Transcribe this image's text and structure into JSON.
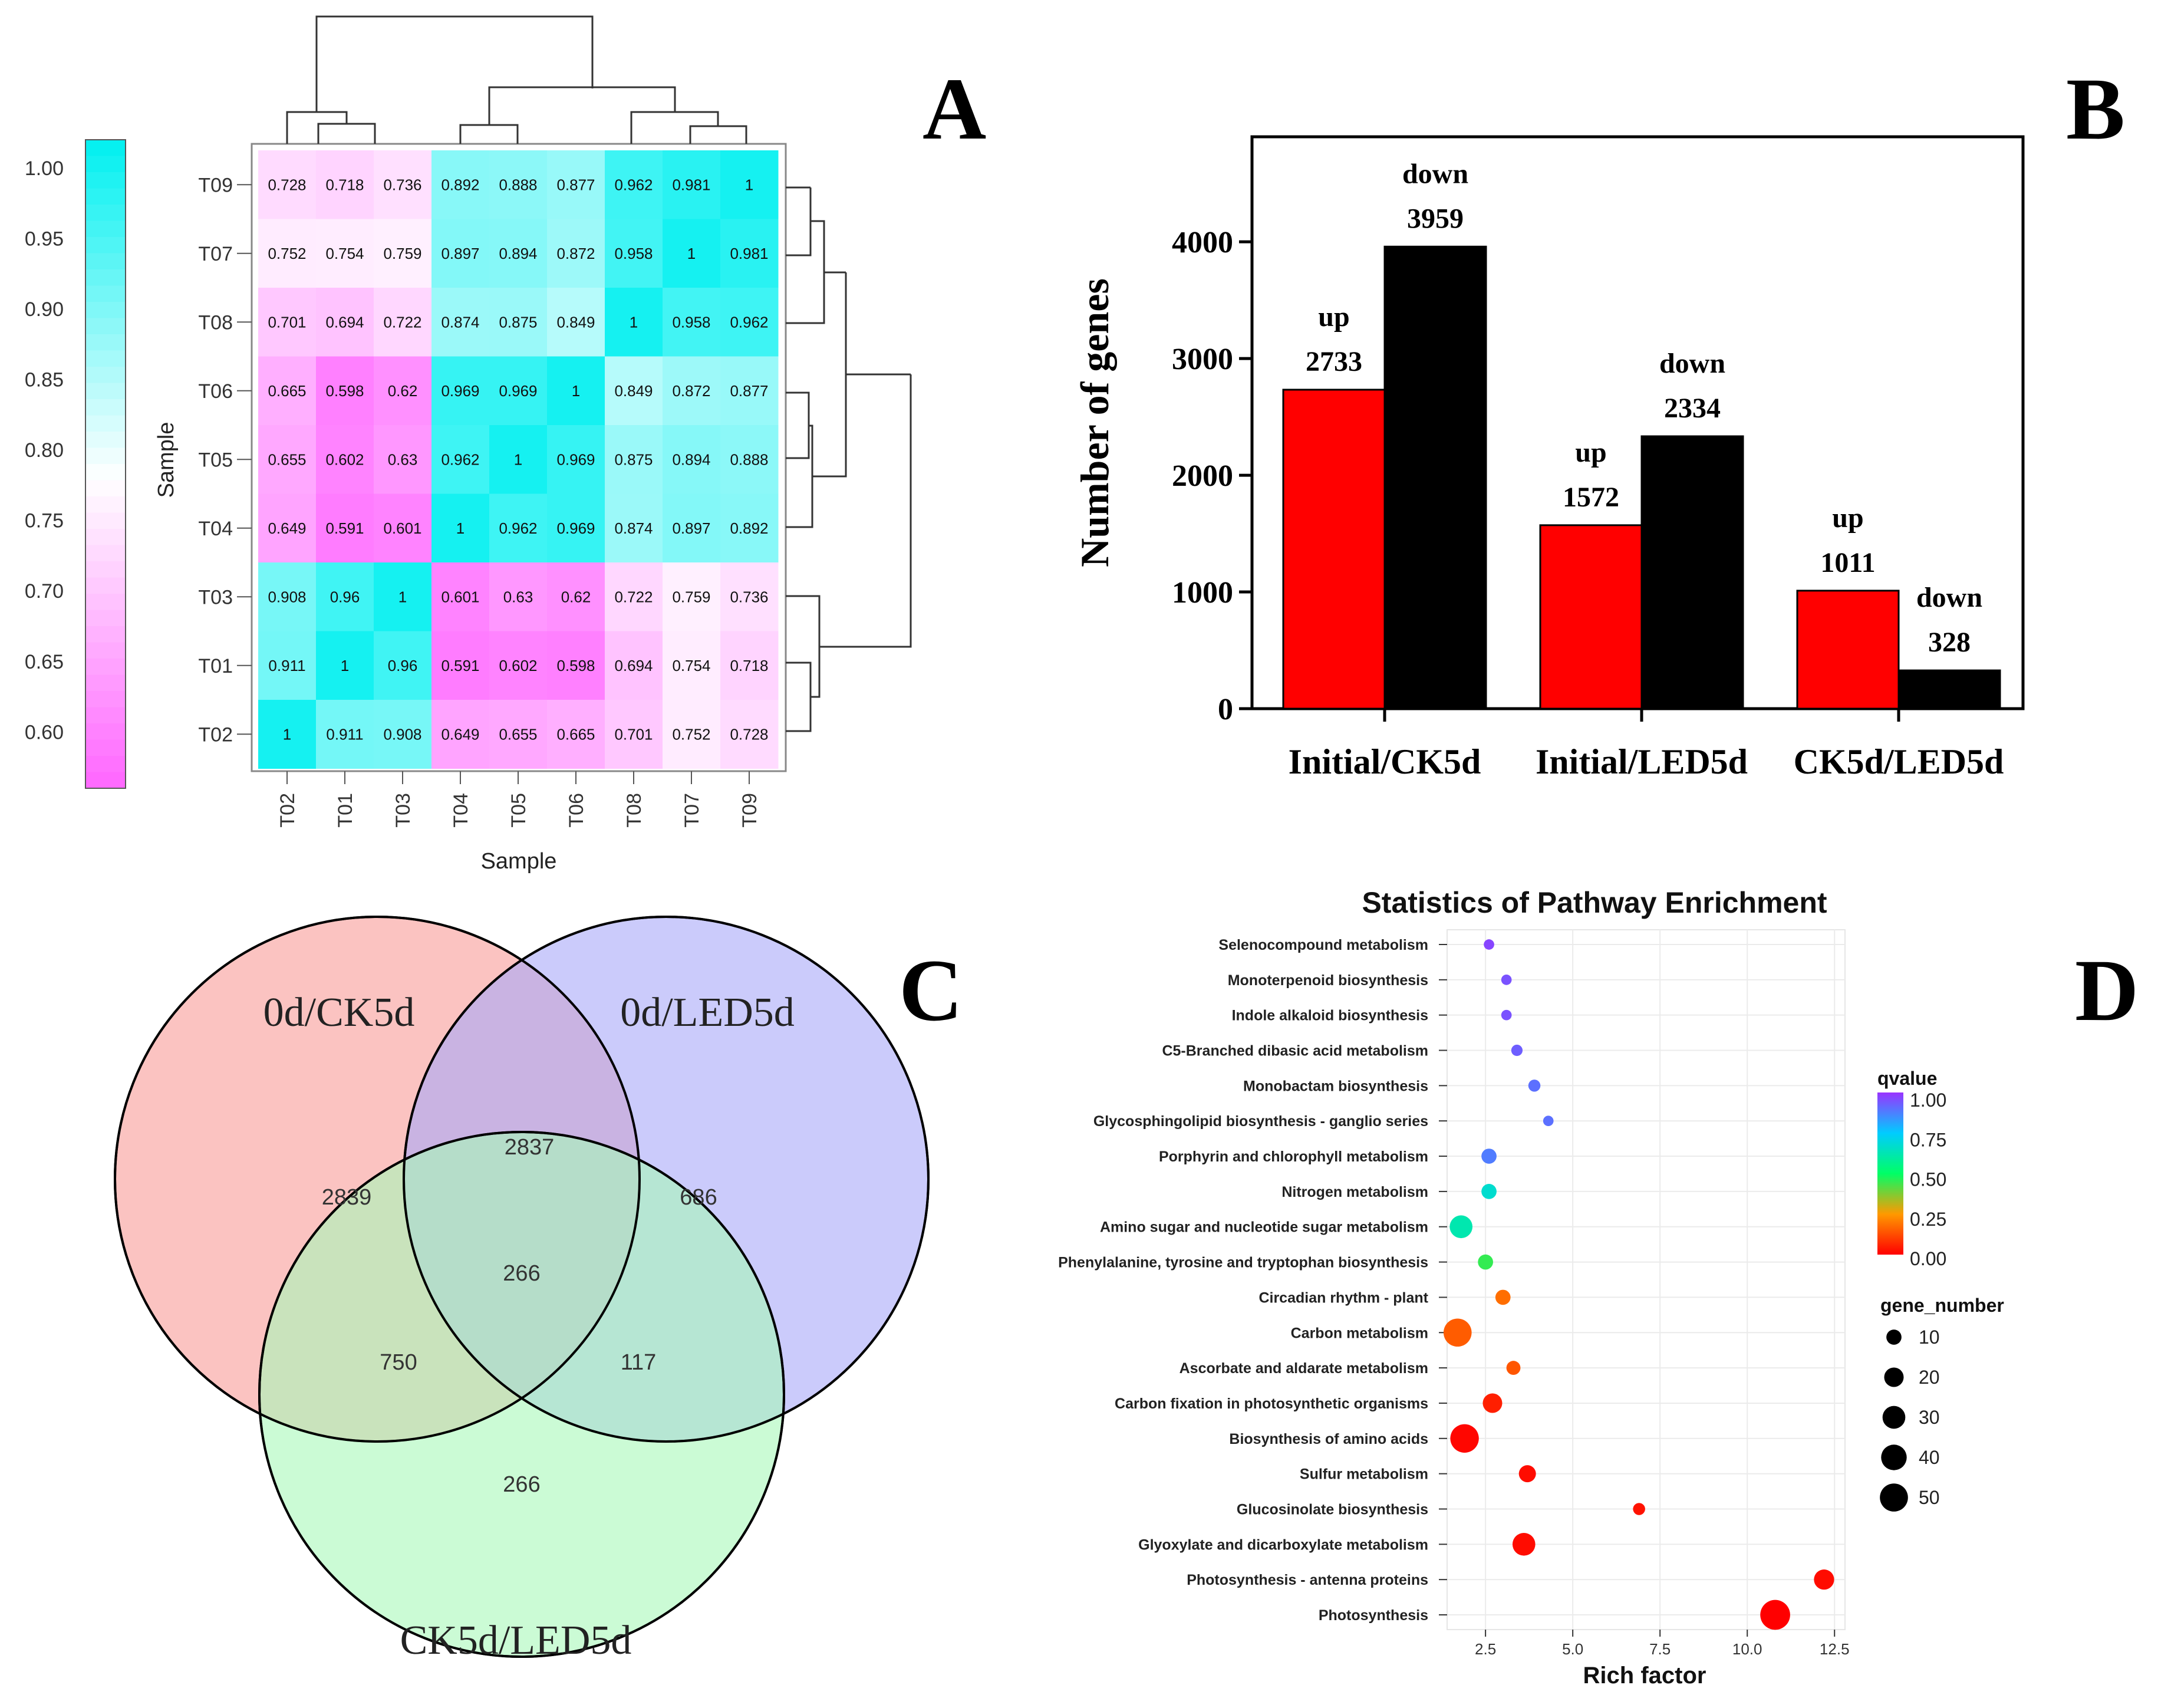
{
  "panels": {
    "a": "A",
    "b": "B",
    "c": "C",
    "d": "D"
  },
  "chart_data": [
    {
      "type": "heatmap",
      "panel": "A",
      "xlabel": "Sample",
      "ylabel": "Sample",
      "col_labels": [
        "T02",
        "T01",
        "T03",
        "T04",
        "T05",
        "T06",
        "T08",
        "T07",
        "T09"
      ],
      "row_labels": [
        "T09",
        "T07",
        "T08",
        "T06",
        "T05",
        "T04",
        "T03",
        "T01",
        "T02"
      ],
      "values": [
        [
          "0.728",
          "0.718",
          "0.736",
          "0.892",
          "0.888",
          "0.877",
          "0.962",
          "0.981",
          "1"
        ],
        [
          "0.752",
          "0.754",
          "0.759",
          "0.897",
          "0.894",
          "0.872",
          "0.958",
          "1",
          "0.981"
        ],
        [
          "0.701",
          "0.694",
          "0.722",
          "0.874",
          "0.875",
          "0.849",
          "1",
          "0.958",
          "0.962"
        ],
        [
          "0.665",
          "0.598",
          "0.62",
          "0.969",
          "0.969",
          "1",
          "0.849",
          "0.872",
          "0.877"
        ],
        [
          "0.655",
          "0.602",
          "0.63",
          "0.962",
          "1",
          "0.969",
          "0.875",
          "0.894",
          "0.888"
        ],
        [
          "0.649",
          "0.591",
          "0.601",
          "1",
          "0.962",
          "0.969",
          "0.874",
          "0.897",
          "0.892"
        ],
        [
          "0.908",
          "0.96",
          "1",
          "0.601",
          "0.63",
          "0.62",
          "0.722",
          "0.759",
          "0.736"
        ],
        [
          "0.911",
          "1",
          "0.96",
          "0.591",
          "0.602",
          "0.598",
          "0.694",
          "0.754",
          "0.718"
        ],
        [
          "1",
          "0.911",
          "0.908",
          "0.649",
          "0.655",
          "0.665",
          "0.701",
          "0.752",
          "0.728"
        ]
      ],
      "colorbar": {
        "ticks": [
          "1.00",
          "0.95",
          "0.90",
          "0.85",
          "0.80",
          "0.75",
          "0.70",
          "0.65",
          "0.60"
        ],
        "low_color": "#ff66ff",
        "mid_color": "#ffffff",
        "high_color": "#00f0f0",
        "range": [
          0.56,
          1.02
        ]
      }
    },
    {
      "type": "bar",
      "panel": "B",
      "ylabel": "Number of genes",
      "categories": [
        "Initial/CK5d",
        "Initial/LED5d",
        "CK5d/LED5d"
      ],
      "series": [
        {
          "name": "up",
          "values": [
            2733,
            1572,
            1011
          ],
          "color": "#ff0000"
        },
        {
          "name": "down",
          "values": [
            3959,
            2334,
            328
          ],
          "color": "#000000"
        }
      ],
      "ylim": [
        0,
        4900
      ],
      "yticks": [
        0,
        1000,
        2000,
        3000,
        4000
      ],
      "series_labels": {
        "up": "up",
        "down": "down"
      }
    },
    {
      "type": "venn",
      "panel": "C",
      "sets": [
        {
          "name": "0d/CK5d",
          "color": "#f9a9a6"
        },
        {
          "name": "0d/LED5d",
          "color": "#a9a9f9"
        },
        {
          "name": "CK5d/LED5d",
          "color": "#a9f9b9"
        }
      ],
      "regions": {
        "ck_only": "2839",
        "led_only": "686",
        "ck_led": "2837",
        "center": "266",
        "ck_cl": "750",
        "led_cl": "117",
        "cl_only": "266"
      }
    },
    {
      "type": "scatter",
      "panel": "D",
      "title": "Statistics of Pathway Enrichment",
      "xlabel": "Rich factor",
      "xlim": [
        1.4,
        12.8
      ],
      "xticks": [
        "2.5",
        "5.0",
        "7.5",
        "10.0",
        "12.5"
      ],
      "points": [
        {
          "pathway": "Selenocompound metabolism",
          "rich": 2.6,
          "q": 0.97,
          "genes": 3
        },
        {
          "pathway": "Monoterpenoid biosynthesis",
          "rich": 3.1,
          "q": 0.95,
          "genes": 3
        },
        {
          "pathway": "Indole alkaloid biosynthesis",
          "rich": 3.1,
          "q": 0.95,
          "genes": 3
        },
        {
          "pathway": "C5-Branched dibasic acid metabolism",
          "rich": 3.4,
          "q": 0.93,
          "genes": 4
        },
        {
          "pathway": "Monobactam biosynthesis",
          "rich": 3.9,
          "q": 0.9,
          "genes": 5
        },
        {
          "pathway": "Glycosphingolipid biosynthesis - ganglio series",
          "rich": 4.3,
          "q": 0.9,
          "genes": 3
        },
        {
          "pathway": "Porphyrin and chlorophyll metabolism",
          "rich": 2.6,
          "q": 0.88,
          "genes": 10
        },
        {
          "pathway": "Nitrogen metabolism",
          "rich": 2.6,
          "q": 0.67,
          "genes": 10
        },
        {
          "pathway": "Amino sugar and nucleotide sugar metabolism",
          "rich": 1.8,
          "q": 0.62,
          "genes": 30
        },
        {
          "pathway": "Phenylalanine, tyrosine and tryptophan biosynthesis",
          "rich": 2.5,
          "q": 0.45,
          "genes": 10
        },
        {
          "pathway": "Circadian rhythm - plant",
          "rich": 3.0,
          "q": 0.18,
          "genes": 10
        },
        {
          "pathway": "Carbon metabolism",
          "rich": 1.7,
          "q": 0.15,
          "genes": 50
        },
        {
          "pathway": "Ascorbate and aldarate metabolism",
          "rich": 3.3,
          "q": 0.14,
          "genes": 8
        },
        {
          "pathway": "Carbon fixation in photosynthetic organisms",
          "rich": 2.7,
          "q": 0.05,
          "genes": 20
        },
        {
          "pathway": "Biosynthesis of amino acids",
          "rich": 1.9,
          "q": 0.01,
          "genes": 52
        },
        {
          "pathway": "Sulfur metabolism",
          "rich": 3.7,
          "q": 0.02,
          "genes": 14
        },
        {
          "pathway": "Glucosinolate biosynthesis",
          "rich": 6.9,
          "q": 0.03,
          "genes": 5
        },
        {
          "pathway": "Glyoxylate and dicarboxylate metabolism",
          "rich": 3.6,
          "q": 0.02,
          "genes": 30
        },
        {
          "pathway": "Photosynthesis - antenna proteins",
          "rich": 12.2,
          "q": 0.02,
          "genes": 22
        },
        {
          "pathway": "Photosynthesis",
          "rich": 10.8,
          "q": 0.0,
          "genes": 58
        }
      ],
      "legend": {
        "color_title": "qvalue",
        "color_ticks": [
          "1.00",
          "0.75",
          "0.50",
          "0.25",
          "0.00"
        ],
        "size_title": "gene_number",
        "size_ticks": [
          "10",
          "20",
          "30",
          "40",
          "50"
        ]
      }
    }
  ]
}
